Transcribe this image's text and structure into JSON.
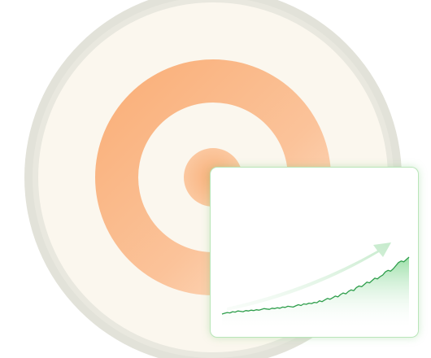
{
  "colors": {
    "outer_ring": "#dcdcd2",
    "target_bg": "#fbf7ee",
    "orange_ring": "#f9b480",
    "orange_center": "#f7b07a",
    "card_border": "#b9e6b9",
    "line": "#2e9e4a",
    "area_fill": "#6fd07a"
  },
  "icons": {
    "target": "target-rings-illustration",
    "trend": "trend-arrow-icon"
  },
  "chart_data": {
    "type": "area",
    "values": [
      2,
      3,
      4,
      3.5,
      5,
      4.5,
      6,
      5.5,
      5,
      6.5,
      6,
      7,
      6.5,
      7.5,
      7,
      8,
      9,
      8.5,
      8,
      9.5,
      9,
      10,
      9.5,
      11,
      10.5,
      12,
      11.5,
      11,
      12.5,
      14,
      13,
      15,
      14.5,
      16,
      15.5,
      17,
      16.5,
      19,
      18,
      20,
      22,
      21,
      23,
      25,
      24,
      27,
      29,
      28,
      31,
      33,
      32,
      36,
      38,
      37,
      40,
      43,
      42,
      45,
      48,
      47,
      50,
      52,
      56,
      58,
      57,
      60,
      64,
      68,
      70,
      69,
      72,
      75
    ]
  }
}
